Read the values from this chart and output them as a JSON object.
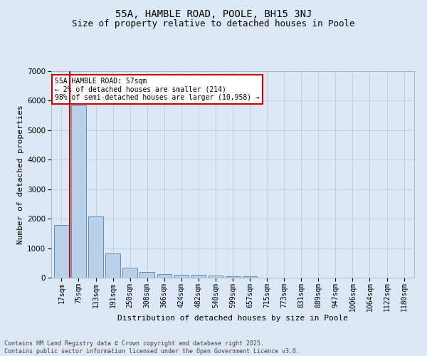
{
  "title": "55A, HAMBLE ROAD, POOLE, BH15 3NJ",
  "subtitle": "Size of property relative to detached houses in Poole",
  "xlabel": "Distribution of detached houses by size in Poole",
  "ylabel": "Number of detached properties",
  "categories": [
    "17sqm",
    "75sqm",
    "133sqm",
    "191sqm",
    "250sqm",
    "308sqm",
    "366sqm",
    "424sqm",
    "482sqm",
    "540sqm",
    "599sqm",
    "657sqm",
    "715sqm",
    "773sqm",
    "831sqm",
    "889sqm",
    "947sqm",
    "1006sqm",
    "1064sqm",
    "1122sqm",
    "1180sqm"
  ],
  "values": [
    1780,
    5830,
    2080,
    810,
    340,
    185,
    115,
    100,
    95,
    75,
    55,
    45,
    0,
    0,
    0,
    0,
    0,
    0,
    0,
    0,
    0
  ],
  "bar_color": "#b8d0e8",
  "bar_edge_color": "#6090b8",
  "ylim": [
    0,
    7000
  ],
  "yticks": [
    0,
    1000,
    2000,
    3000,
    4000,
    5000,
    6000,
    7000
  ],
  "vline_color": "#cc0000",
  "annotation_text": "55A HAMBLE ROAD: 57sqm\n← 2% of detached houses are smaller (214)\n98% of semi-detached houses are larger (10,958) →",
  "annotation_box_color": "#cc0000",
  "background_color": "#dce8f5",
  "footer_line1": "Contains HM Land Registry data © Crown copyright and database right 2025.",
  "footer_line2": "Contains public sector information licensed under the Open Government Licence v3.0.",
  "title_fontsize": 10,
  "subtitle_fontsize": 9,
  "label_fontsize": 8,
  "tick_fontsize": 7,
  "footer_fontsize": 6
}
